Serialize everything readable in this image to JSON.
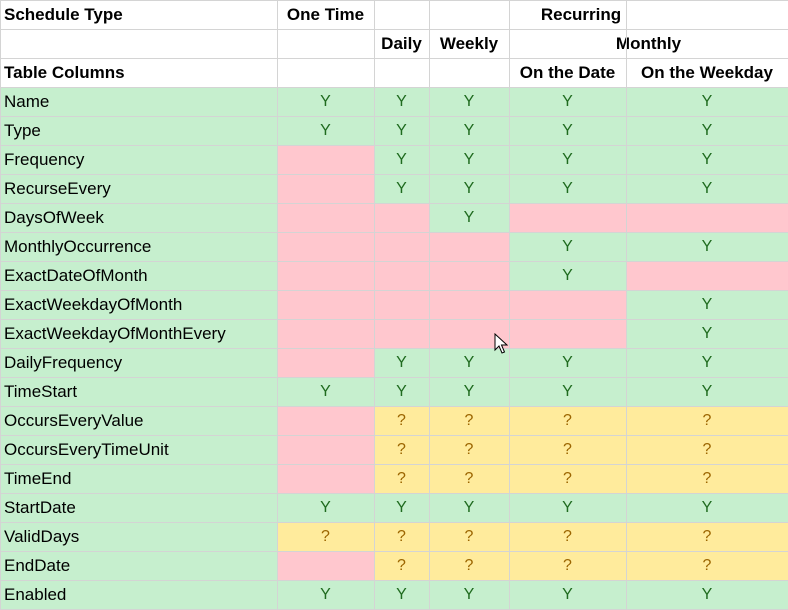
{
  "colors": {
    "green": "#c6efce",
    "pink": "#ffc7ce",
    "yellow": "#ffeb9c",
    "grid": "#d4d4d4",
    "yes_text": "#1f6b1f",
    "maybe_text": "#9c6500"
  },
  "header": {
    "schedule_type": "Schedule Type",
    "one_time": "One Time",
    "recurring": "Recurring",
    "daily": "Daily",
    "weekly": "Weekly",
    "monthly": "Monthly",
    "table_columns": "Table Columns",
    "on_the_date": "On the Date",
    "on_the_weekday": "On the Weekday"
  },
  "legend": {
    "Y": "green",
    "?": "yellow",
    "": "pink"
  },
  "rows": [
    {
      "name": "Name",
      "cells": [
        "Y",
        "Y",
        "Y",
        "Y",
        "Y"
      ]
    },
    {
      "name": "Type",
      "cells": [
        "Y",
        "Y",
        "Y",
        "Y",
        "Y"
      ]
    },
    {
      "name": "Frequency",
      "cells": [
        "",
        "Y",
        "Y",
        "Y",
        "Y"
      ]
    },
    {
      "name": "RecurseEvery",
      "cells": [
        "",
        "Y",
        "Y",
        "Y",
        "Y"
      ]
    },
    {
      "name": "DaysOfWeek",
      "cells": [
        "",
        "",
        "Y",
        "",
        ""
      ]
    },
    {
      "name": "MonthlyOccurrence",
      "cells": [
        "",
        "",
        "",
        "Y",
        "Y"
      ]
    },
    {
      "name": "ExactDateOfMonth",
      "cells": [
        "",
        "",
        "",
        "Y",
        ""
      ]
    },
    {
      "name": "ExactWeekdayOfMonth",
      "cells": [
        "",
        "",
        "",
        "",
        "Y"
      ]
    },
    {
      "name": "ExactWeekdayOfMonthEvery",
      "cells": [
        "",
        "",
        "",
        "",
        "Y"
      ]
    },
    {
      "name": "DailyFrequency",
      "cells": [
        "",
        "Y",
        "Y",
        "Y",
        "Y"
      ]
    },
    {
      "name": "TimeStart",
      "cells": [
        "Y",
        "Y",
        "Y",
        "Y",
        "Y"
      ]
    },
    {
      "name": "OccursEveryValue",
      "cells": [
        "",
        "?",
        "?",
        "?",
        "?"
      ]
    },
    {
      "name": "OccursEveryTimeUnit",
      "cells": [
        "",
        "?",
        "?",
        "?",
        "?"
      ]
    },
    {
      "name": "TimeEnd",
      "cells": [
        "",
        "?",
        "?",
        "?",
        "?"
      ]
    },
    {
      "name": "StartDate",
      "cells": [
        "Y",
        "Y",
        "Y",
        "Y",
        "Y"
      ]
    },
    {
      "name": "ValidDays",
      "cells": [
        "?",
        "?",
        "?",
        "?",
        "?"
      ]
    },
    {
      "name": "EndDate",
      "cells": [
        "",
        "?",
        "?",
        "?",
        "?"
      ]
    },
    {
      "name": "Enabled",
      "cells": [
        "Y",
        "Y",
        "Y",
        "Y",
        "Y"
      ]
    }
  ]
}
